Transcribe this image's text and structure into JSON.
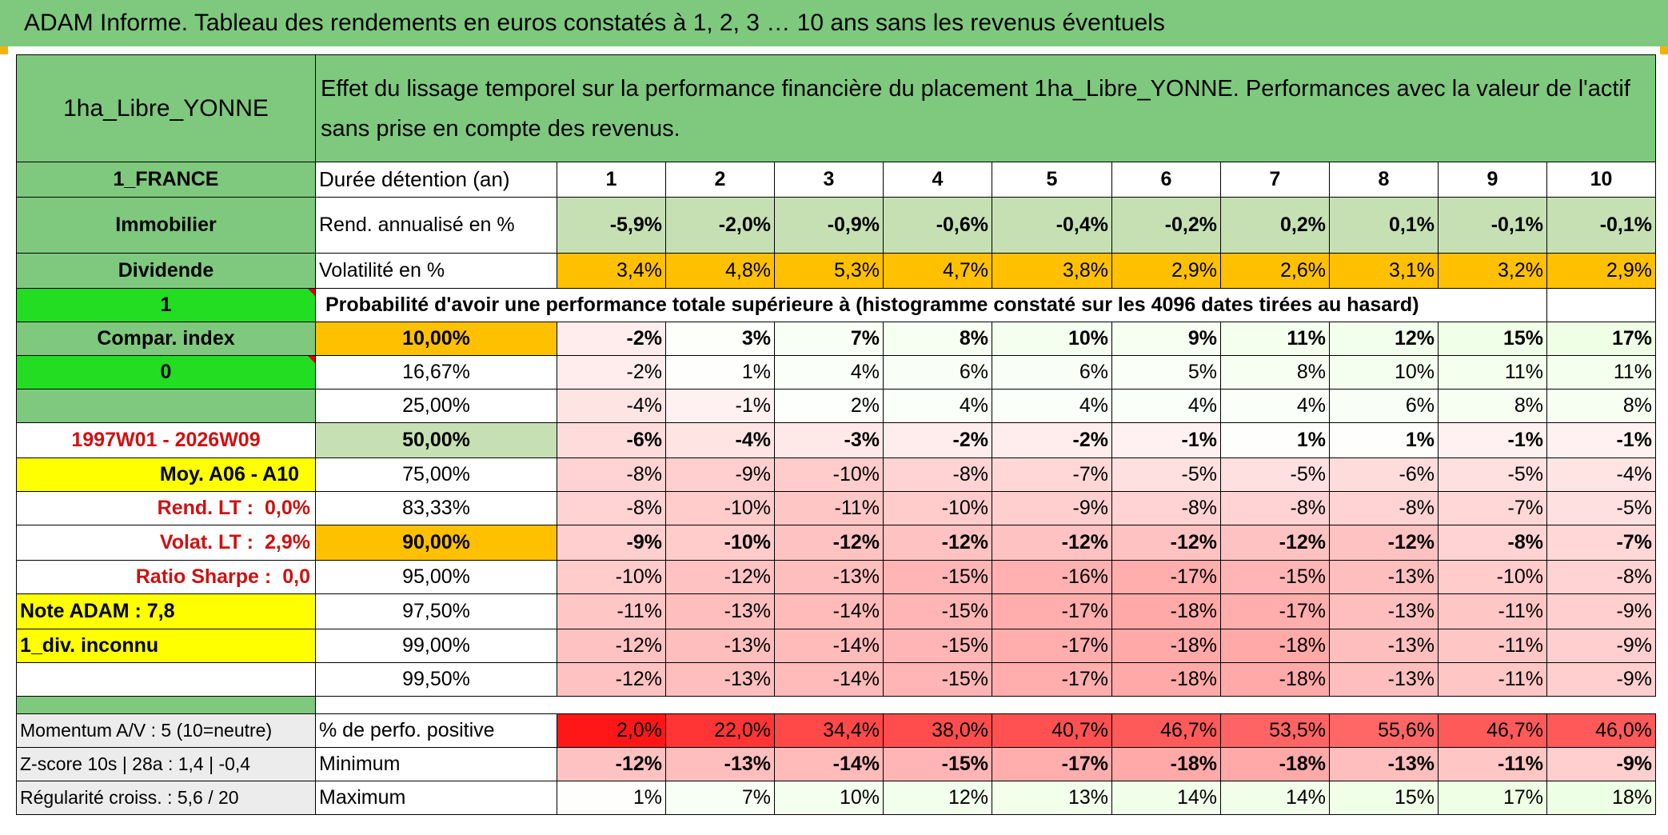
{
  "title": "ADAM Informe. Tableau des rendements en euros constatés à 1, 2, 3 … 10 ans sans les revenus éventuels",
  "asset_name": "1ha_Libre_YONNE",
  "header_text": "Effet du lissage temporel sur la performance financière du placement 1ha_Libre_YONNE. Performances avec la valeur de l'actif sans prise en compte des revenus.",
  "left_labels": {
    "country": "1_FRANCE",
    "category": "Immobilier",
    "type": "Dividende",
    "flag1": "1",
    "compar_index": "Compar. index",
    "flag0": "0",
    "period": "1997W01 - 2026W09",
    "moy": "Moy. A06 - A10",
    "rend_lt_label": "Rend. LT :",
    "rend_lt_value": "0,0%",
    "volat_lt_label": "Volat. LT :",
    "volat_lt_value": "2,9%",
    "sharpe_label": "Ratio Sharpe :",
    "sharpe_value": "0,0",
    "note": "Note ADAM : 7,8",
    "div": "1_div. inconnu",
    "momentum": "Momentum A/V : 5 (10=neutre)",
    "zscore": "Z-score 10s | 28a : 1,4 | -0,4",
    "regularite": "Régularité croiss. : 5,6 / 20"
  },
  "row_labels": {
    "duree": "Durée détention (an)",
    "rend": "Rend. annualisé en %",
    "volat": "Volatilité en %",
    "proba": "Probabilité d'avoir une performance totale supérieure à (histogramme constaté sur les 4096 dates tirées au hasard)",
    "perf_pos": "% de perfo. positive",
    "minimum": "Minimum",
    "maximum": "Maximum"
  },
  "years": [
    "1",
    "2",
    "3",
    "4",
    "5",
    "6",
    "7",
    "8",
    "9",
    "10"
  ],
  "rend": [
    "-5,9%",
    "-2,0%",
    "-0,9%",
    "-0,6%",
    "-0,4%",
    "-0,2%",
    "0,2%",
    "0,1%",
    "-0,1%",
    "-0,1%"
  ],
  "volat": [
    "3,4%",
    "4,8%",
    "5,3%",
    "4,7%",
    "3,8%",
    "2,9%",
    "2,6%",
    "3,1%",
    "3,2%",
    "2,9%"
  ],
  "percentiles": [
    {
      "label": "10,00%",
      "values": [
        "-2%",
        "3%",
        "7%",
        "8%",
        "10%",
        "9%",
        "11%",
        "12%",
        "15%",
        "17%"
      ]
    },
    {
      "label": "16,67%",
      "values": [
        "-2%",
        "1%",
        "4%",
        "6%",
        "6%",
        "5%",
        "8%",
        "10%",
        "11%",
        "11%"
      ]
    },
    {
      "label": "25,00%",
      "values": [
        "-4%",
        "-1%",
        "2%",
        "4%",
        "4%",
        "4%",
        "4%",
        "6%",
        "8%",
        "8%"
      ]
    },
    {
      "label": "50,00%",
      "values": [
        "-6%",
        "-4%",
        "-3%",
        "-2%",
        "-2%",
        "-1%",
        "1%",
        "1%",
        "-1%",
        "-1%"
      ]
    },
    {
      "label": "75,00%",
      "values": [
        "-8%",
        "-9%",
        "-10%",
        "-8%",
        "-7%",
        "-5%",
        "-5%",
        "-6%",
        "-5%",
        "-4%"
      ]
    },
    {
      "label": "83,33%",
      "values": [
        "-8%",
        "-10%",
        "-11%",
        "-10%",
        "-9%",
        "-8%",
        "-8%",
        "-8%",
        "-7%",
        "-5%"
      ]
    },
    {
      "label": "90,00%",
      "values": [
        "-9%",
        "-10%",
        "-12%",
        "-12%",
        "-12%",
        "-12%",
        "-12%",
        "-12%",
        "-8%",
        "-7%"
      ]
    },
    {
      "label": "95,00%",
      "values": [
        "-10%",
        "-12%",
        "-13%",
        "-15%",
        "-16%",
        "-17%",
        "-15%",
        "-13%",
        "-10%",
        "-8%"
      ]
    },
    {
      "label": "97,50%",
      "values": [
        "-11%",
        "-13%",
        "-14%",
        "-15%",
        "-17%",
        "-18%",
        "-17%",
        "-13%",
        "-11%",
        "-9%"
      ]
    },
    {
      "label": "99,00%",
      "values": [
        "-12%",
        "-13%",
        "-14%",
        "-15%",
        "-17%",
        "-18%",
        "-18%",
        "-13%",
        "-11%",
        "-9%"
      ]
    },
    {
      "label": "99,50%",
      "values": [
        "-12%",
        "-13%",
        "-14%",
        "-15%",
        "-17%",
        "-18%",
        "-18%",
        "-13%",
        "-11%",
        "-9%"
      ]
    }
  ],
  "perf_pos": [
    "2,0%",
    "22,0%",
    "34,4%",
    "38,0%",
    "40,7%",
    "46,7%",
    "53,5%",
    "55,6%",
    "46,7%",
    "46,0%"
  ],
  "minimum": [
    "-12%",
    "-13%",
    "-14%",
    "-15%",
    "-17%",
    "-18%",
    "-18%",
    "-13%",
    "-11%",
    "-9%"
  ],
  "maximum": [
    "1%",
    "7%",
    "10%",
    "12%",
    "13%",
    "14%",
    "14%",
    "15%",
    "17%",
    "18%"
  ],
  "colors": {
    "header_green": "#7ec97e",
    "bright_green": "#22dd22",
    "light_green": "#c6e0b4",
    "orange": "#ffc000",
    "yellow": "#ffff00",
    "red_text": "#d01010"
  }
}
